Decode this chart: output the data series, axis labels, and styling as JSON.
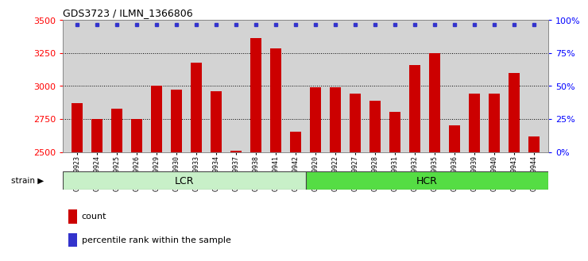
{
  "title": "GDS3723 / ILMN_1366806",
  "samples": [
    "GSM429923",
    "GSM429924",
    "GSM429925",
    "GSM429926",
    "GSM429929",
    "GSM429930",
    "GSM429933",
    "GSM429934",
    "GSM429937",
    "GSM429938",
    "GSM429941",
    "GSM429942",
    "GSM429920",
    "GSM429922",
    "GSM429927",
    "GSM429928",
    "GSM429931",
    "GSM429932",
    "GSM429935",
    "GSM429936",
    "GSM429939",
    "GSM429940",
    "GSM429943",
    "GSM429944"
  ],
  "counts": [
    2870,
    2750,
    2830,
    2750,
    3000,
    2975,
    3175,
    2960,
    2510,
    3360,
    3285,
    2655,
    2990,
    2990,
    2945,
    2890,
    2805,
    3160,
    3250,
    2700,
    2940,
    2945,
    3100,
    2620
  ],
  "lcr_count": 12,
  "hcr_count": 12,
  "bar_color": "#cc0000",
  "dot_color": "#3333cc",
  "ylim_left": [
    2500,
    3500
  ],
  "ylim_right": [
    0,
    100
  ],
  "yticks_left": [
    2500,
    2750,
    3000,
    3250,
    3500
  ],
  "yticks_right": [
    0,
    25,
    50,
    75,
    100
  ],
  "bg_color": "#d3d3d3",
  "lcr_color": "#c8f0c8",
  "hcr_color": "#55dd44",
  "lcr_label": "LCR",
  "hcr_label": "HCR",
  "strain_label": "strain",
  "legend_count": "count",
  "legend_pct": "percentile rank within the sample",
  "grid_lines": [
    2750,
    3000,
    3250
  ],
  "dot_pct": 0.965
}
